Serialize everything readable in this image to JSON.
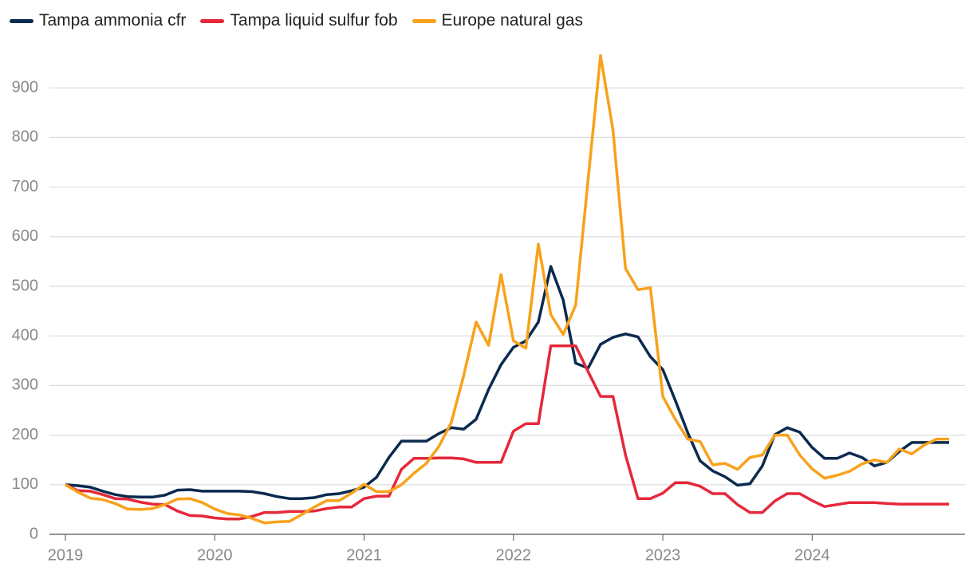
{
  "chart_data": {
    "type": "line",
    "categories": [
      "2019",
      null,
      null,
      null,
      null,
      null,
      null,
      null,
      null,
      null,
      null,
      null,
      "2020",
      null,
      null,
      null,
      null,
      null,
      null,
      null,
      null,
      null,
      null,
      null,
      "2021",
      null,
      null,
      null,
      null,
      null,
      null,
      null,
      null,
      null,
      null,
      null,
      "2022",
      null,
      null,
      null,
      null,
      null,
      null,
      null,
      null,
      null,
      null,
      null,
      "2023",
      null,
      null,
      null,
      null,
      null,
      null,
      null,
      null,
      null,
      null,
      null,
      "2024",
      null,
      null,
      null,
      null,
      null,
      null,
      null,
      null,
      null,
      null,
      null
    ],
    "series": [
      {
        "name": "Tampa ammonia cfr",
        "color": "#0b2a4f",
        "values": [
          100,
          98,
          95,
          87,
          80,
          76,
          75,
          75,
          79,
          89,
          90,
          87,
          87,
          87,
          87,
          86,
          82,
          76,
          72,
          72,
          74,
          80,
          82,
          88,
          95,
          115,
          155,
          188,
          188,
          188,
          203,
          215,
          212,
          232,
          292,
          342,
          377,
          390,
          428,
          540,
          472,
          345,
          335,
          383,
          397,
          404,
          398,
          358,
          332,
          270,
          205,
          148,
          128,
          116,
          99,
          102,
          138,
          201,
          215,
          206,
          175,
          153,
          153,
          164,
          155,
          138,
          145,
          167,
          185,
          185,
          185,
          185
        ]
      },
      {
        "name": "Tampa liquid sulfur fob",
        "color": "#e5283a",
        "values": [
          100,
          88,
          87,
          80,
          72,
          71,
          65,
          61,
          60,
          47,
          38,
          37,
          33,
          31,
          31,
          36,
          44,
          44,
          46,
          46,
          47,
          52,
          55,
          55,
          72,
          77,
          77,
          131,
          153,
          153,
          154,
          154,
          152,
          145,
          145,
          145,
          208,
          223,
          223,
          380,
          380,
          380,
          328,
          278,
          278,
          160,
          72,
          72,
          83,
          104,
          104,
          97,
          82,
          82,
          60,
          44,
          44,
          67,
          82,
          82,
          68,
          56,
          60,
          64,
          64,
          64,
          62,
          61,
          61,
          61,
          61,
          61
        ]
      },
      {
        "name": "Europe natural gas",
        "color": "#f7a21b",
        "values": [
          100,
          85,
          73,
          70,
          62,
          51,
          50,
          52,
          60,
          71,
          72,
          64,
          51,
          42,
          39,
          32,
          23,
          25,
          26,
          40,
          55,
          68,
          68,
          83,
          101,
          86,
          86,
          100,
          123,
          143,
          177,
          225,
          320,
          428,
          381,
          524,
          390,
          375,
          585,
          443,
          403,
          462,
          715,
          965,
          815,
          536,
          493,
          497,
          278,
          232,
          192,
          187,
          140,
          143,
          131,
          155,
          160,
          200,
          200,
          160,
          132,
          113,
          119,
          127,
          142,
          150,
          145,
          172,
          162,
          180,
          192,
          192
        ]
      }
    ],
    "ylim": [
      0,
      980
    ],
    "yticks": [
      0,
      100,
      200,
      300,
      400,
      500,
      600,
      700,
      800,
      900
    ],
    "grid": true,
    "legend": "top-left"
  }
}
